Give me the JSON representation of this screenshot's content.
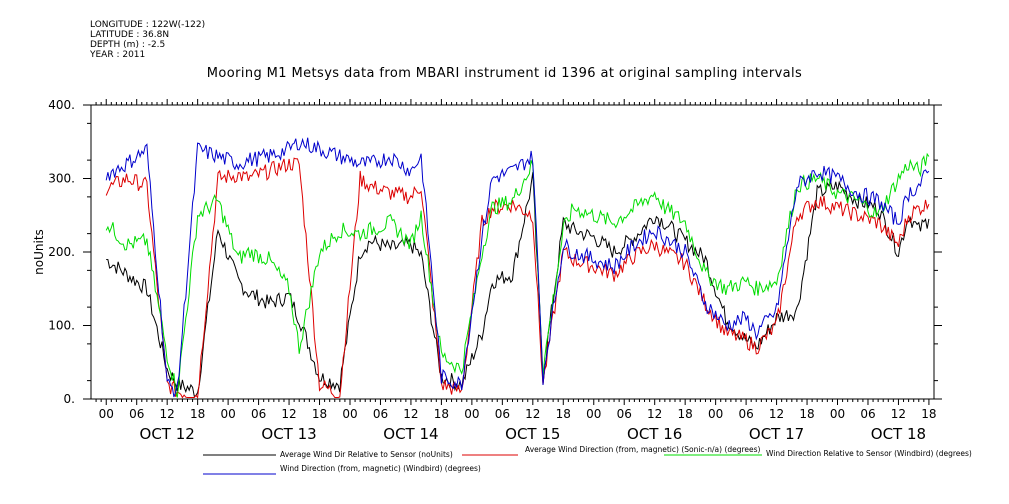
{
  "meta": {
    "longitude": "LONGITUDE : 122W(-122)",
    "latitude": "LATITUDE : 36.8N",
    "depth": "DEPTH (m) : -2.5",
    "year": "YEAR : 2011"
  },
  "chart_data": {
    "type": "line",
    "title": "Mooring M1 Metsys data from MBARI instrument id 1396 at original sampling intervals",
    "ylabel": "noUnits",
    "xlabel": "",
    "ylim": [
      0,
      400
    ],
    "y_ticks": [
      0,
      100,
      200,
      300,
      400
    ],
    "y_tick_labels": [
      "0.",
      "100.",
      "200.",
      "300.",
      "400."
    ],
    "x_hour_labels": [
      "00",
      "06",
      "12",
      "18",
      "00",
      "06",
      "12",
      "18",
      "00",
      "06",
      "12",
      "18",
      "00",
      "06",
      "12",
      "18",
      "00",
      "06",
      "12",
      "18",
      "00",
      "06",
      "12",
      "18",
      "00",
      "06",
      "12",
      "18"
    ],
    "x_day_labels": [
      "OCT 12",
      "OCT 13",
      "OCT 14",
      "OCT 15",
      "OCT 16",
      "OCT 17",
      "OCT 18"
    ],
    "x_range_hours": [
      -3,
      163
    ],
    "grid": false,
    "legend_placement": "bottom",
    "series": [
      {
        "name": "Average Wind Dir Relative to Sensor (noUnits)",
        "color": "#000000",
        "x": [
          0,
          4,
          8,
          12,
          14,
          18,
          22,
          26,
          28,
          32,
          36,
          38,
          42,
          46,
          50,
          52,
          56,
          60,
          62,
          66,
          70,
          74,
          76,
          80,
          84,
          86,
          90,
          92,
          96,
          100,
          104,
          108,
          110,
          114,
          118,
          122,
          126,
          128,
          132,
          136,
          140,
          144,
          148,
          152,
          156,
          158,
          160,
          162
        ],
        "values": [
          190,
          170,
          150,
          40,
          20,
          10,
          230,
          160,
          145,
          130,
          140,
          110,
          30,
          20,
          200,
          215,
          205,
          210,
          195,
          30,
          20,
          90,
          160,
          170,
          300,
          30,
          240,
          230,
          220,
          200,
          220,
          250,
          240,
          215,
          190,
          110,
          80,
          70,
          110,
          120,
          280,
          290,
          270,
          260,
          200,
          250,
          230,
          245
        ]
      },
      {
        "name": "Average Wind Direction (from, magnetic) (Sonic-n/a) (degrees)",
        "color": "#dd0000",
        "x": [
          0,
          4,
          8,
          12,
          14,
          18,
          22,
          26,
          28,
          32,
          36,
          38,
          42,
          46,
          50,
          52,
          56,
          60,
          62,
          66,
          70,
          74,
          76,
          80,
          84,
          86,
          90,
          92,
          96,
          100,
          104,
          108,
          110,
          114,
          118,
          122,
          126,
          128,
          132,
          136,
          140,
          144,
          148,
          152,
          156,
          158,
          160,
          162
        ],
        "values": [
          285,
          300,
          290,
          20,
          10,
          5,
          300,
          305,
          300,
          310,
          320,
          320,
          20,
          5,
          300,
          290,
          280,
          275,
          290,
          20,
          10,
          240,
          260,
          265,
          250,
          20,
          200,
          190,
          180,
          170,
          195,
          210,
          200,
          185,
          130,
          90,
          80,
          70,
          100,
          250,
          270,
          260,
          250,
          240,
          210,
          250,
          260,
          265
        ]
      },
      {
        "name": "Wind Direction Relative to Sensor (Windbird) (degrees)",
        "color": "#00dd00",
        "x": [
          0,
          4,
          8,
          12,
          14,
          18,
          22,
          26,
          28,
          32,
          36,
          38,
          42,
          46,
          50,
          52,
          56,
          60,
          62,
          66,
          70,
          74,
          76,
          80,
          84,
          86,
          90,
          92,
          96,
          100,
          104,
          108,
          110,
          114,
          118,
          122,
          126,
          128,
          132,
          136,
          140,
          144,
          148,
          152,
          156,
          158,
          160,
          162
        ],
        "values": [
          240,
          210,
          215,
          60,
          10,
          250,
          270,
          190,
          200,
          190,
          150,
          70,
          200,
          230,
          225,
          230,
          240,
          210,
          250,
          60,
          40,
          200,
          260,
          270,
          320,
          40,
          230,
          260,
          250,
          240,
          260,
          280,
          260,
          240,
          170,
          150,
          160,
          150,
          160,
          290,
          300,
          280,
          270,
          250,
          300,
          320,
          310,
          330
        ]
      },
      {
        "name": "Wind Direction (from, magnetic) (Windbird) (degrees)",
        "color": "#0000cc",
        "x": [
          0,
          4,
          8,
          12,
          14,
          18,
          22,
          26,
          28,
          32,
          36,
          38,
          42,
          46,
          50,
          52,
          56,
          60,
          62,
          66,
          70,
          74,
          76,
          80,
          84,
          86,
          90,
          92,
          96,
          100,
          104,
          108,
          110,
          114,
          118,
          122,
          126,
          128,
          132,
          136,
          140,
          144,
          148,
          152,
          156,
          158,
          160,
          162
        ],
        "values": [
          305,
          320,
          340,
          20,
          10,
          340,
          330,
          320,
          325,
          330,
          340,
          350,
          340,
          330,
          320,
          320,
          330,
          310,
          330,
          30,
          20,
          220,
          300,
          310,
          330,
          30,
          210,
          200,
          190,
          180,
          210,
          230,
          220,
          200,
          130,
          100,
          110,
          90,
          120,
          290,
          310,
          300,
          280,
          270,
          240,
          280,
          290,
          310
        ]
      }
    ]
  }
}
